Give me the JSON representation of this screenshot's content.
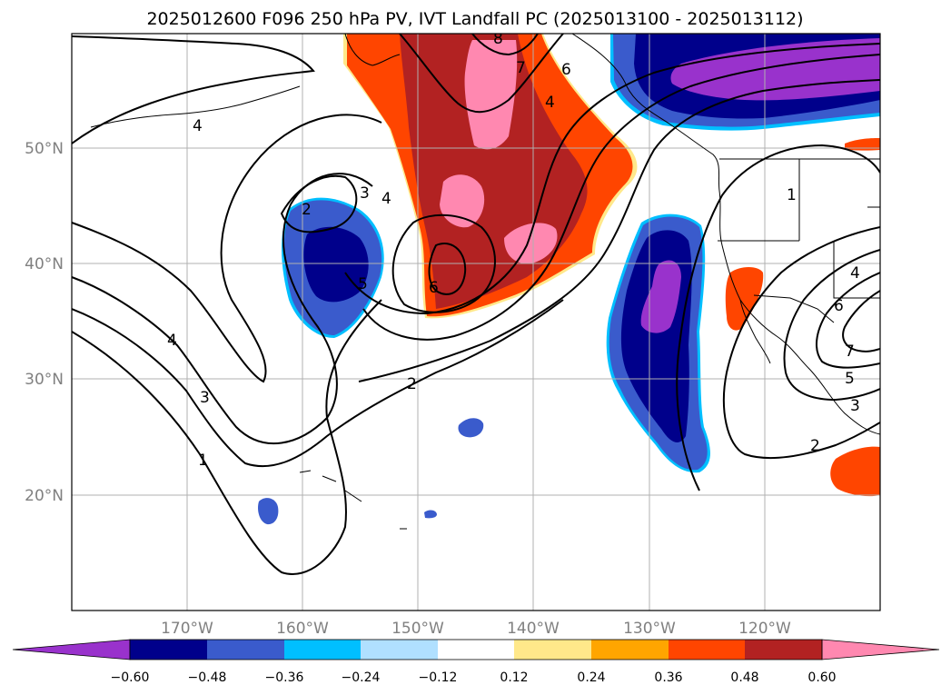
{
  "title": "2025012600 F096 250 hPa PV, IVT Landfall PC (2025013100 - 2025013112)",
  "lon_labels": [
    "170°W",
    "160°W",
    "150°W",
    "140°W",
    "130°W",
    "120°W"
  ],
  "lat_labels": [
    "50°N",
    "40°N",
    "30°N",
    "20°N"
  ],
  "colorbar": {
    "tick_labels": [
      "−0.60",
      "−0.48",
      "−0.36",
      "−0.24",
      "−0.12",
      "0.12",
      "0.24",
      "0.36",
      "0.48",
      "0.60"
    ],
    "colors": [
      "#9932cc",
      "#00008b",
      "#3a5bcc",
      "#00bfff",
      "#b0e0ff",
      "#ffffff",
      "#ffe88a",
      "#ffa500",
      "#ff4500",
      "#b22222",
      "#ff88b0"
    ]
  },
  "contour_labels": {
    "l_4a": "4",
    "l_3a": "3",
    "l_2a": "2",
    "l_4b": "4",
    "l_5a": "5",
    "l_6a": "6",
    "l_4c": "4",
    "l_3b": "3",
    "l_1a": "1",
    "l_2b": "2",
    "l_8a": "8",
    "l_7a": "7",
    "l_6b": "6",
    "l_4d": "4",
    "l_1b": "1",
    "l_4e": "4",
    "l_6c": "6",
    "l_7b": "7",
    "l_5b": "5",
    "l_3c": "3",
    "l_2c": "2"
  }
}
